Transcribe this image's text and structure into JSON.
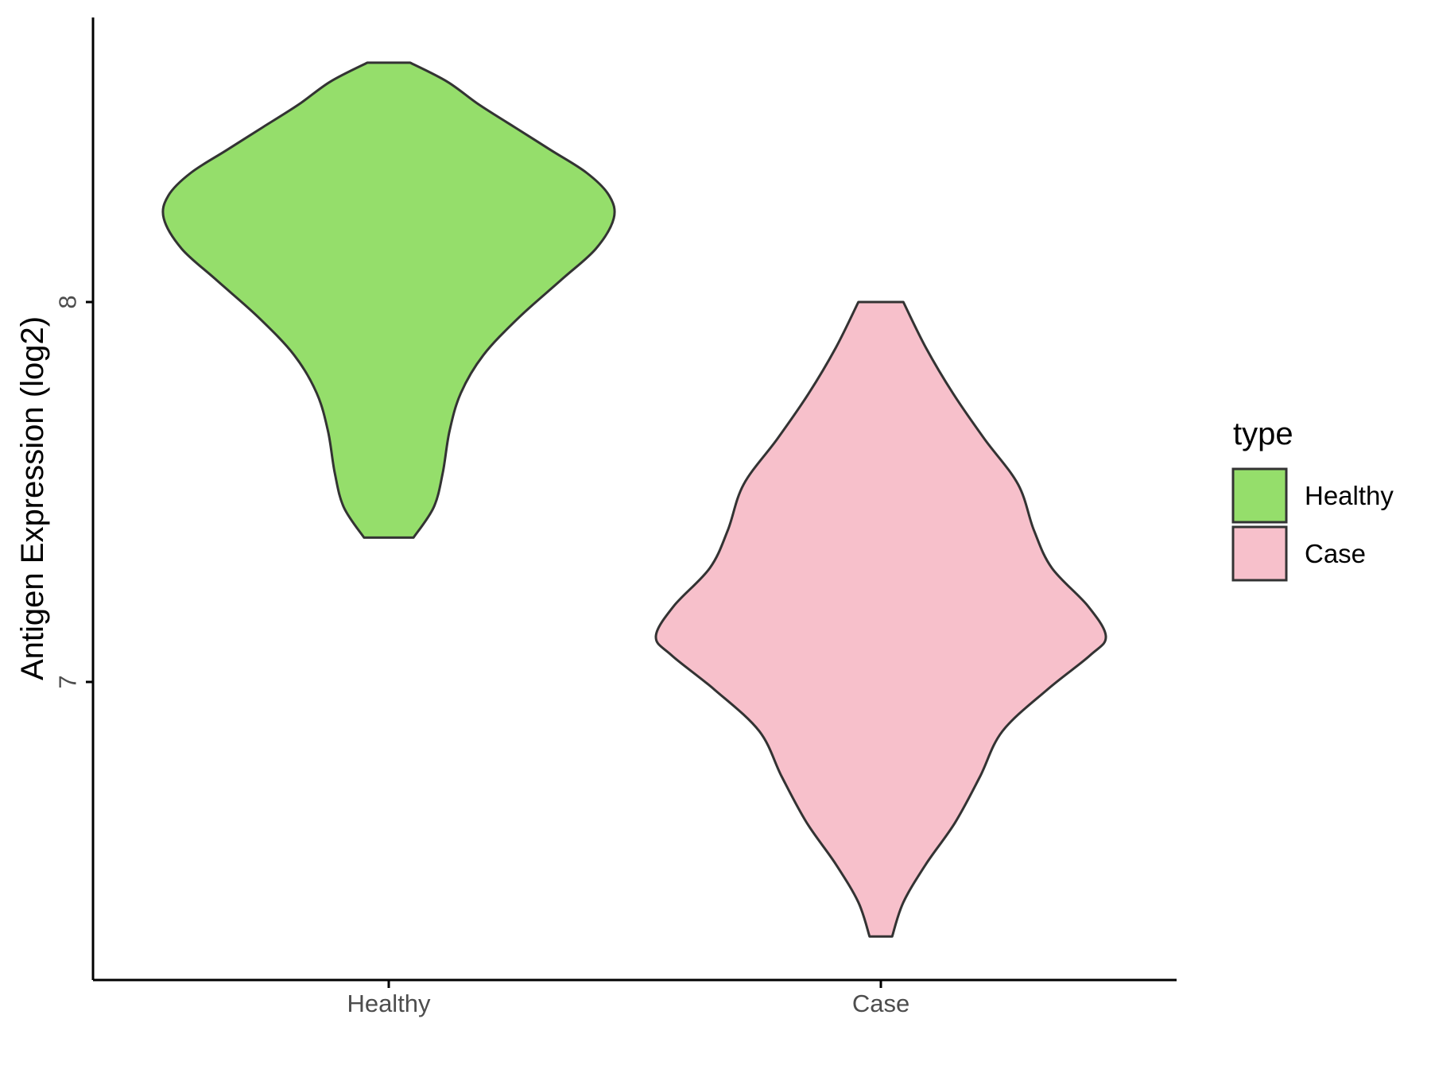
{
  "chart_data": {
    "type": "violin",
    "ylabel": "Antigen Expression (log2)",
    "xlabel": "",
    "categories": [
      "Healthy",
      "Case"
    ],
    "yticks": [
      7,
      8
    ],
    "ylim": [
      6.22,
      8.75
    ],
    "legend": {
      "title": "type",
      "position": "right",
      "entries": [
        {
          "label": "Healthy",
          "color": "#95DE6B"
        },
        {
          "label": "Case",
          "color": "#F7C0CB"
        }
      ]
    },
    "series": [
      {
        "category": "Healthy",
        "color": "#95DE6B",
        "min": 7.38,
        "max": 8.63,
        "density_profile": [
          [
            7.38,
            0.11
          ],
          [
            7.46,
            0.2
          ],
          [
            7.55,
            0.24
          ],
          [
            7.66,
            0.27
          ],
          [
            7.76,
            0.32
          ],
          [
            7.86,
            0.42
          ],
          [
            7.96,
            0.58
          ],
          [
            8.06,
            0.77
          ],
          [
            8.14,
            0.92
          ],
          [
            8.22,
            1.0
          ],
          [
            8.28,
            0.98
          ],
          [
            8.34,
            0.88
          ],
          [
            8.4,
            0.72
          ],
          [
            8.46,
            0.56
          ],
          [
            8.52,
            0.4
          ],
          [
            8.58,
            0.26
          ],
          [
            8.63,
            0.095
          ]
        ]
      },
      {
        "category": "Case",
        "color": "#F7C0CB",
        "min": 6.33,
        "max": 8.0,
        "density_profile": [
          [
            6.33,
            0.05
          ],
          [
            6.42,
            0.1
          ],
          [
            6.52,
            0.2
          ],
          [
            6.63,
            0.33
          ],
          [
            6.75,
            0.44
          ],
          [
            6.87,
            0.54
          ],
          [
            6.98,
            0.74
          ],
          [
            7.07,
            0.93
          ],
          [
            7.12,
            1.0
          ],
          [
            7.2,
            0.92
          ],
          [
            7.3,
            0.76
          ],
          [
            7.4,
            0.68
          ],
          [
            7.52,
            0.61
          ],
          [
            7.64,
            0.46
          ],
          [
            7.76,
            0.32
          ],
          [
            7.88,
            0.2
          ],
          [
            8.0,
            0.1
          ]
        ]
      }
    ]
  }
}
